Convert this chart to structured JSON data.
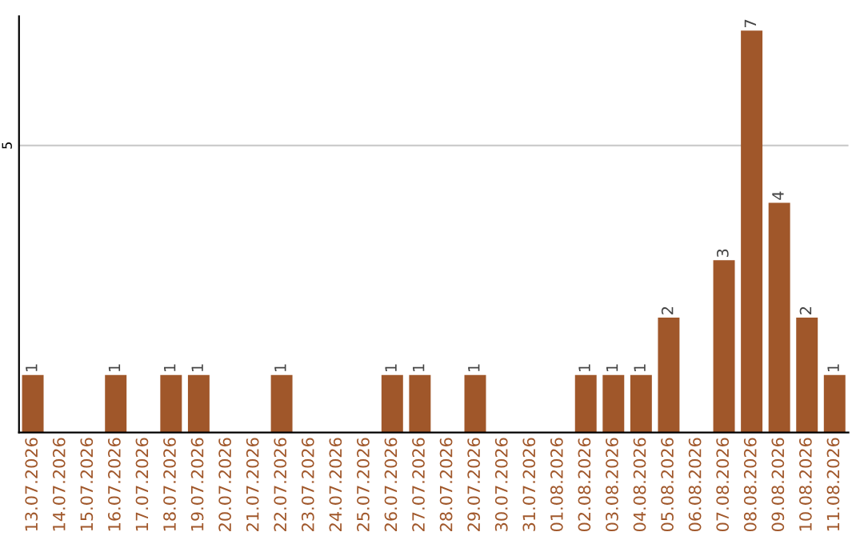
{
  "chart_data": {
    "type": "bar",
    "categories": [
      "13.07.2026",
      "14.07.2026",
      "15.07.2026",
      "16.07.2026",
      "17.07.2026",
      "18.07.2026",
      "19.07.2026",
      "20.07.2026",
      "21.07.2026",
      "22.07.2026",
      "23.07.2026",
      "24.07.2026",
      "25.07.2026",
      "26.07.2026",
      "27.07.2026",
      "28.07.2026",
      "29.07.2026",
      "30.07.2026",
      "31.07.2026",
      "01.08.2026",
      "02.08.2026",
      "03.08.2026",
      "04.08.2026",
      "05.08.2026",
      "06.08.2026",
      "07.08.2026",
      "08.08.2026",
      "09.08.2026",
      "10.08.2026",
      "11.08.2026"
    ],
    "values": [
      1,
      0,
      0,
      1,
      0,
      1,
      1,
      0,
      0,
      1,
      0,
      0,
      0,
      1,
      1,
      0,
      1,
      0,
      0,
      0,
      1,
      1,
      1,
      2,
      0,
      3,
      7,
      4,
      2,
      1
    ],
    "value_labels": [
      "1",
      null,
      null,
      "1",
      null,
      "1",
      "1",
      null,
      null,
      "1",
      null,
      null,
      null,
      "1",
      "1",
      null,
      "1",
      null,
      null,
      null,
      "1",
      "1",
      "1",
      "2",
      null,
      "3",
      "7",
      "4",
      "2",
      "1"
    ],
    "color": "#a0572a",
    "ylim": [
      0,
      7.25
    ],
    "yticks": [
      5
    ],
    "grid": "y"
  }
}
